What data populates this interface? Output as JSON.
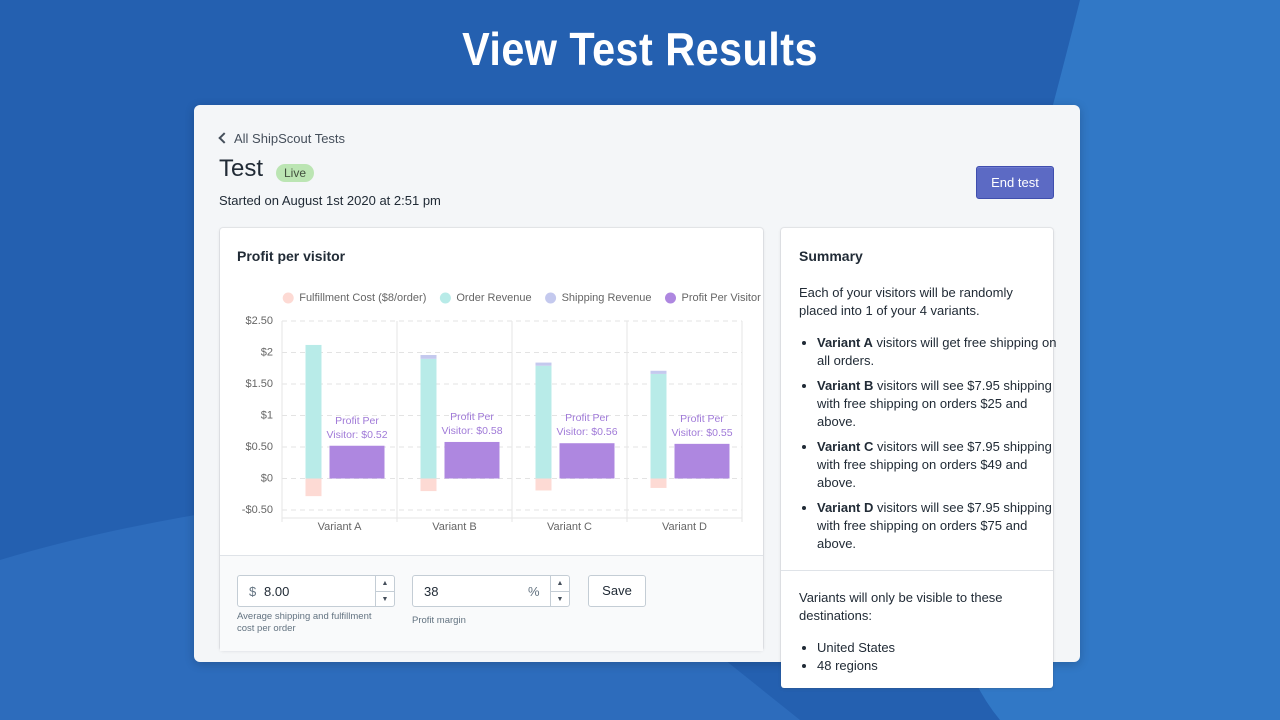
{
  "banner_title": "View Test Results",
  "back_link": "All ShipScout Tests",
  "page_title": "Test",
  "status_badge": "Live",
  "started": "Started on August 1st 2020 at 2:51 pm",
  "end_button": "End test",
  "chart_data": {
    "type": "bar",
    "title": "Profit per visitor",
    "categories": [
      "Variant A",
      "Variant B",
      "Variant C",
      "Variant D"
    ],
    "series": [
      {
        "name": "Fulfillment Cost ($8/order)",
        "color": "#fddad4",
        "values": [
          -0.28,
          -0.2,
          -0.19,
          -0.15
        ]
      },
      {
        "name": "Order Revenue",
        "color": "#b8ebe8",
        "values": [
          2.12,
          1.9,
          1.79,
          1.66
        ]
      },
      {
        "name": "Shipping Revenue",
        "color": "#c4c9ee",
        "values": [
          0,
          0.06,
          0.05,
          0.05
        ]
      },
      {
        "name": "Profit Per Visitor",
        "color": "#ae87e0",
        "values": [
          0.52,
          0.58,
          0.56,
          0.55
        ],
        "value_labels": [
          "Profit Per Visitor: $0.52",
          "Profit Per Visitor: $0.58",
          "Profit Per Visitor: $0.56",
          "Profit Per Visitor: $0.55"
        ]
      }
    ],
    "stack_groups": [
      [
        0,
        1,
        2
      ],
      [
        3
      ]
    ],
    "ylim": [
      -0.5,
      2.5
    ],
    "yticks": [
      {
        "value": -0.5,
        "label": "-$0.50"
      },
      {
        "value": 0,
        "label": "$0"
      },
      {
        "value": 0.5,
        "label": "$0.50"
      },
      {
        "value": 1,
        "label": "$1"
      },
      {
        "value": 1.5,
        "label": "$1.50"
      },
      {
        "value": 2,
        "label": "$2"
      },
      {
        "value": 2.5,
        "label": "$2.50"
      }
    ],
    "grid": true,
    "legend": "top"
  },
  "settings": {
    "cost_prefix": "$",
    "cost_value": "8.00",
    "cost_help": "Average shipping and fulfillment cost per order",
    "margin_value": "38",
    "margin_suffix": "%",
    "margin_help": "Profit margin",
    "save_button": "Save"
  },
  "summary": {
    "title": "Summary",
    "intro": "Each of your visitors will be randomly placed into 1 of your 4 variants.",
    "variants": [
      {
        "name": "Variant A",
        "text": "visitors will get free shipping on all orders."
      },
      {
        "name": "Variant B",
        "text": "visitors will see $7.95 shipping with free shipping on orders $25 and above."
      },
      {
        "name": "Variant C",
        "text": "visitors will see $7.95 shipping with free shipping on orders $49 and above."
      },
      {
        "name": "Variant D",
        "text": "visitors will see $7.95 shipping with free shipping on orders $75 and above."
      }
    ],
    "destinations_intro": "Variants will only be visible to these destinations:",
    "destinations": [
      "United States",
      "48 regions"
    ]
  }
}
